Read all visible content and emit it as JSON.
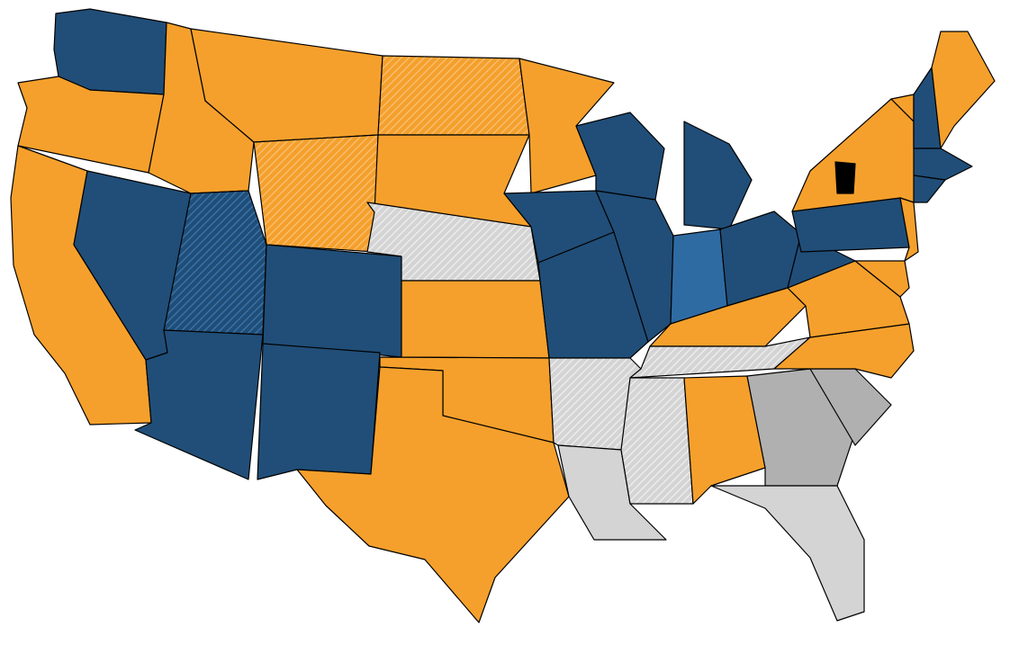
{
  "map": {
    "palette": {
      "orange": "#f5a02c",
      "navy": "#204e78",
      "blue": "#2f6ba3",
      "gray": "#b0b0b0",
      "light_gray": "#d4d4d4",
      "black": "#000000",
      "district_border": "#8fd16a",
      "state_border": "#000000"
    },
    "states": [
      {
        "id": "WA",
        "fill": "navy",
        "hatch": false
      },
      {
        "id": "OR",
        "fill": "orange",
        "hatch": false
      },
      {
        "id": "CA",
        "fill": "orange",
        "hatch": false
      },
      {
        "id": "NV",
        "fill": "navy",
        "hatch": false
      },
      {
        "id": "ID",
        "fill": "orange",
        "hatch": false
      },
      {
        "id": "MT",
        "fill": "orange",
        "hatch": false
      },
      {
        "id": "WY",
        "fill": "orange",
        "hatch": true
      },
      {
        "id": "UT",
        "fill": "navy",
        "hatch": true
      },
      {
        "id": "AZ",
        "fill": "navy",
        "hatch": false
      },
      {
        "id": "CO",
        "fill": "navy",
        "hatch": false
      },
      {
        "id": "NM",
        "fill": "navy",
        "hatch": false
      },
      {
        "id": "ND",
        "fill": "orange",
        "hatch": true
      },
      {
        "id": "SD",
        "fill": "orange",
        "hatch": false
      },
      {
        "id": "NE",
        "fill": "light_gray",
        "hatch": true
      },
      {
        "id": "KS",
        "fill": "orange",
        "hatch": false
      },
      {
        "id": "OK",
        "fill": "orange",
        "hatch": false
      },
      {
        "id": "TX",
        "fill": "orange",
        "hatch": false
      },
      {
        "id": "MN",
        "fill": "orange",
        "hatch": false
      },
      {
        "id": "IA",
        "fill": "navy",
        "hatch": false
      },
      {
        "id": "MO",
        "fill": "navy",
        "hatch": false
      },
      {
        "id": "AR",
        "fill": "light_gray",
        "hatch": true
      },
      {
        "id": "LA",
        "fill": "light_gray",
        "hatch": false
      },
      {
        "id": "WI",
        "fill": "navy",
        "hatch": false
      },
      {
        "id": "IL",
        "fill": "navy",
        "hatch": false
      },
      {
        "id": "MI",
        "fill": "navy",
        "hatch": false
      },
      {
        "id": "IN",
        "fill": "blue",
        "hatch": false
      },
      {
        "id": "OH",
        "fill": "navy",
        "hatch": false
      },
      {
        "id": "KY",
        "fill": "orange",
        "hatch": false
      },
      {
        "id": "TN",
        "fill": "light_gray",
        "hatch": true
      },
      {
        "id": "MS",
        "fill": "light_gray",
        "hatch": true
      },
      {
        "id": "AL",
        "fill": "orange",
        "hatch": false
      },
      {
        "id": "GA",
        "fill": "gray",
        "hatch": false
      },
      {
        "id": "FL",
        "fill": "light_gray",
        "hatch": false
      },
      {
        "id": "SC",
        "fill": "gray",
        "hatch": false
      },
      {
        "id": "NC",
        "fill": "orange",
        "hatch": false
      },
      {
        "id": "VA",
        "fill": "orange",
        "hatch": false
      },
      {
        "id": "WV",
        "fill": "navy",
        "hatch": false
      },
      {
        "id": "PA",
        "fill": "navy",
        "hatch": false
      },
      {
        "id": "NY",
        "fill": "orange",
        "hatch": false
      },
      {
        "id": "NJ",
        "fill": "orange",
        "hatch": false
      },
      {
        "id": "MD",
        "fill": "orange",
        "hatch": false
      },
      {
        "id": "VT",
        "fill": "orange",
        "hatch": false
      },
      {
        "id": "NH",
        "fill": "navy",
        "hatch": false
      },
      {
        "id": "ME",
        "fill": "orange",
        "hatch": false
      },
      {
        "id": "MA",
        "fill": "navy",
        "hatch": false
      },
      {
        "id": "CT",
        "fill": "navy",
        "hatch": false
      },
      {
        "id": "NY-district",
        "fill": "black",
        "hatch": false
      }
    ]
  }
}
